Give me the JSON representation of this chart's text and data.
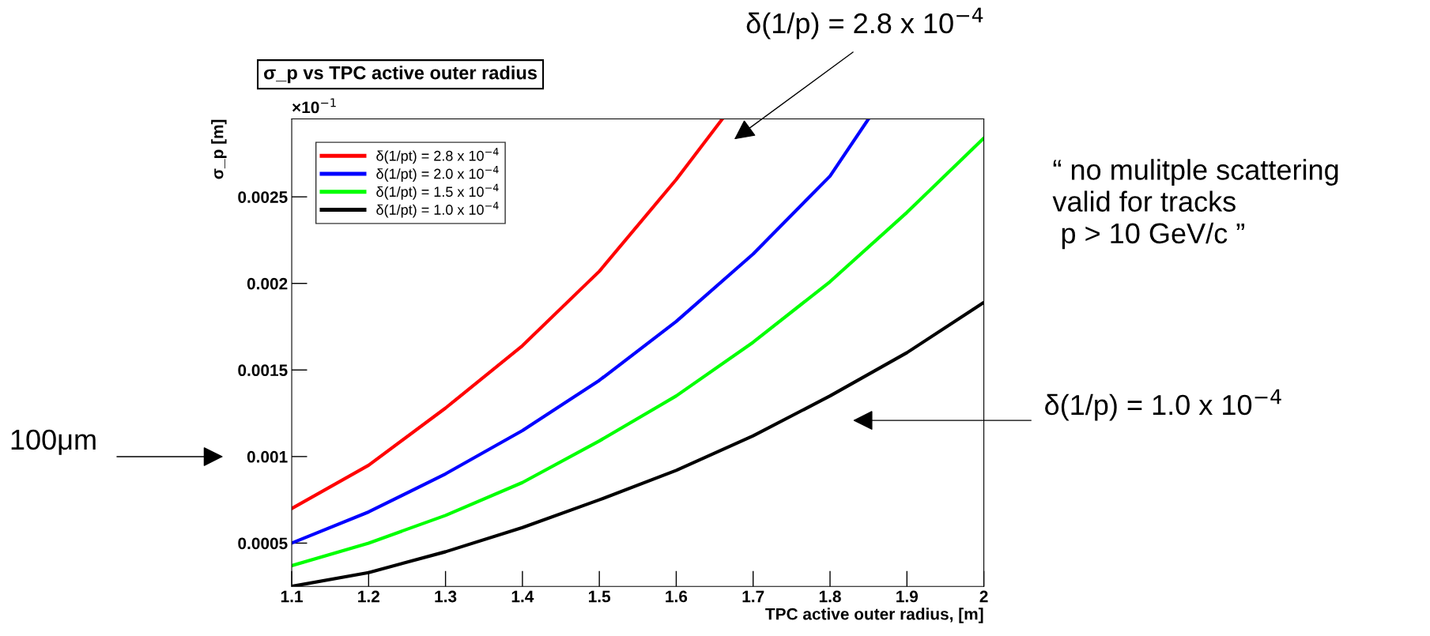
{
  "chart_data": {
    "type": "line",
    "title": "σ_p vs TPC active outer radius",
    "xlabel": "TPC active outer radius, [m]",
    "ylabel": "σ_p [m]",
    "xlim": [
      1.1,
      2.0
    ],
    "xticks": [
      1.1,
      1.2,
      1.3,
      1.4,
      1.5,
      1.6,
      1.7,
      1.8,
      1.9,
      {
        "value": 2.0,
        "label": "2"
      }
    ],
    "ylim": [
      0.00025,
      0.00295
    ],
    "yticks": [
      0.0005,
      0.001,
      0.0015,
      0.002,
      0.0025
    ],
    "grid": false,
    "legend": "top left",
    "line_style": "solid",
    "marker": "none",
    "series": [
      {
        "name": "δ(1/pt) = 2.8 x 10$^{−4}$",
        "color": "#ff0000",
        "x": [
          1.1,
          1.2,
          1.3,
          1.4,
          1.5,
          1.6,
          1.66
        ],
        "values": [
          0.0007,
          0.00095,
          0.00128,
          0.00164,
          0.00207,
          0.0026,
          0.00295
        ]
      },
      {
        "name": "δ(1/pt) = 2.0 x 10$^{−4}$",
        "color": "#0000ff",
        "x": [
          1.1,
          1.2,
          1.3,
          1.4,
          1.5,
          1.6,
          1.7,
          1.8,
          1.85
        ],
        "values": [
          0.0005,
          0.00068,
          0.0009,
          0.00115,
          0.00144,
          0.00178,
          0.00217,
          0.00262,
          0.00295
        ]
      },
      {
        "name": "δ(1/pt) = 1.5 x 10$^{−4}$",
        "color": "#00ff00",
        "x": [
          1.1,
          1.2,
          1.3,
          1.4,
          1.5,
          1.6,
          1.7,
          1.8,
          1.9,
          2.0
        ],
        "values": [
          0.00037,
          0.0005,
          0.00066,
          0.00085,
          0.00109,
          0.00135,
          0.00166,
          0.00201,
          0.00241,
          0.00284
        ]
      },
      {
        "name": "δ(1/pt) = 1.0 x 10$^{−4}$",
        "color": "#000000",
        "x": [
          1.1,
          1.2,
          1.3,
          1.4,
          1.5,
          1.6,
          1.7,
          1.8,
          1.9,
          2.0
        ],
        "values": [
          0.00025,
          0.00033,
          0.00045,
          0.00059,
          0.00075,
          0.00092,
          0.00112,
          0.00135,
          0.0016,
          0.00189
        ]
      }
    ],
    "annotations": [
      "×10$^{−1}$",
      "δ(1/p) = 2.8 x 10$^{−4}$",
      "δ(1/p) = 1.0 x 10$^{−4}$",
      "100μm",
      "“ no mulitple scattering\nvalid for tracks\n p > 10 GeV/c ”"
    ]
  }
}
